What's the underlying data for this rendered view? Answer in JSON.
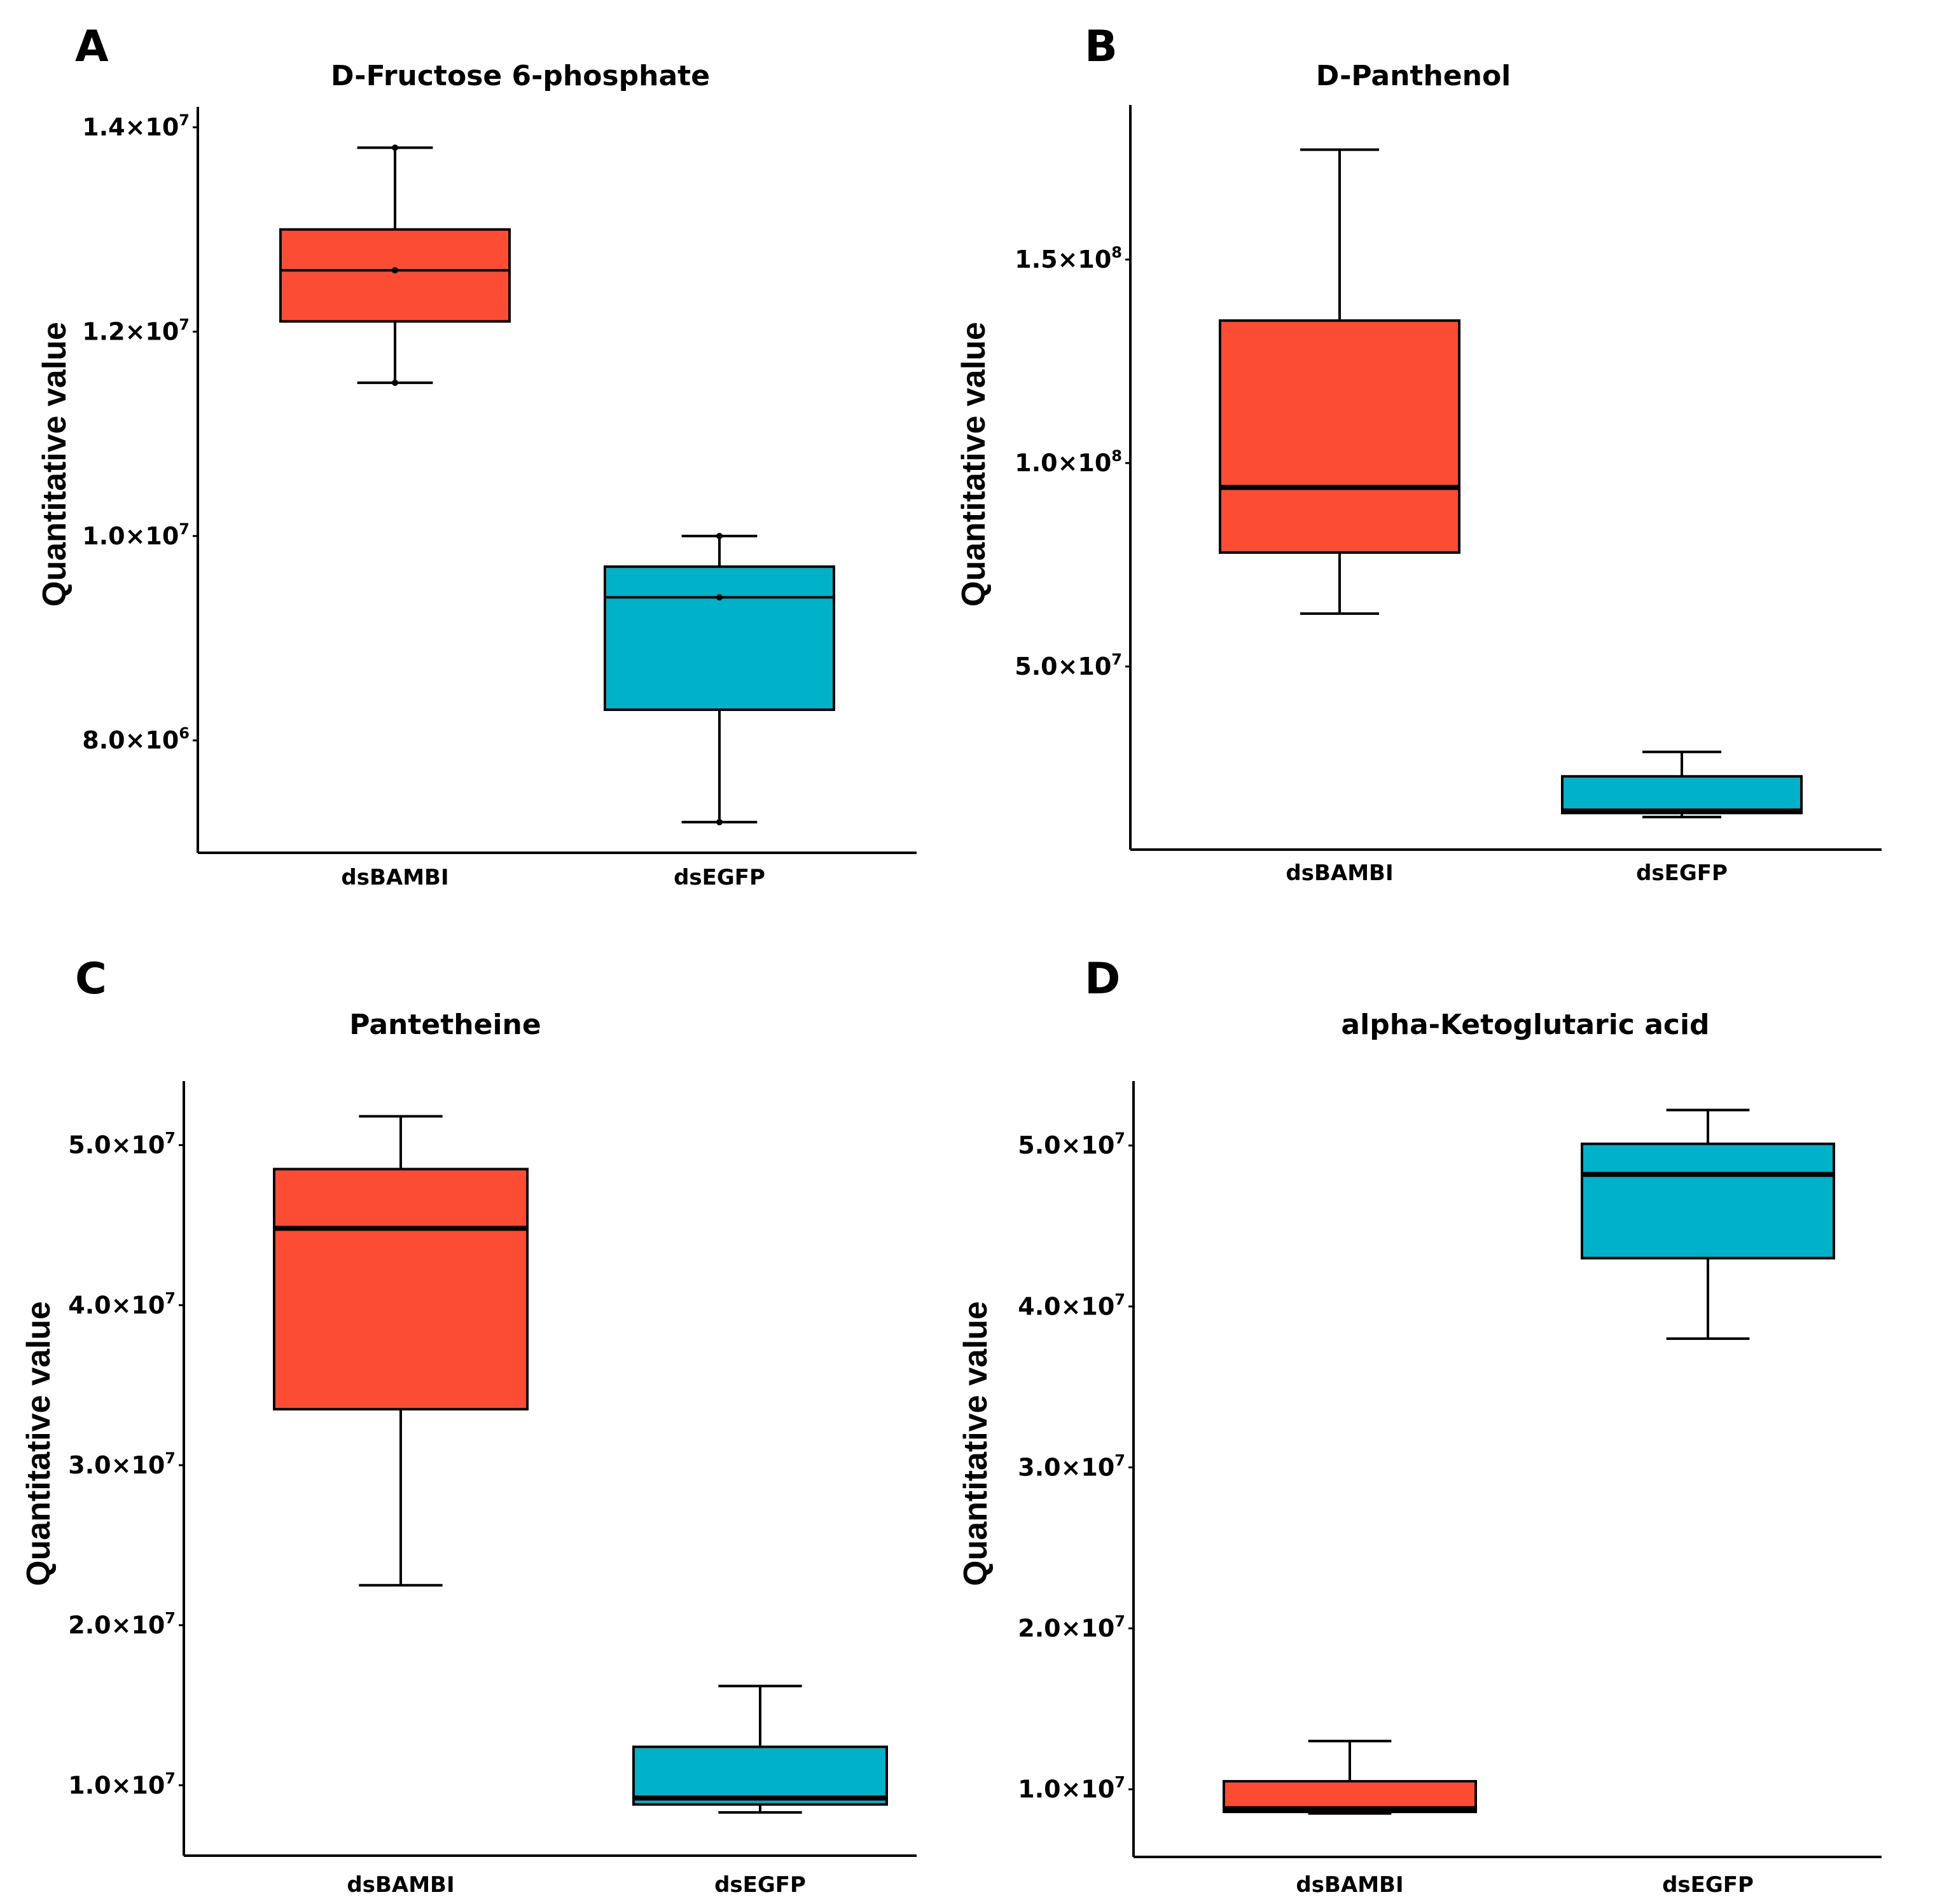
{
  "chart_data": [
    {
      "panel": "A",
      "type": "box",
      "title": "D-Fructose 6-phosphate",
      "ylabel": "Quantitative value",
      "ylim": [
        6900000,
        14200000
      ],
      "yticks": [
        {
          "value": 8000000,
          "mant": "8.0",
          "exp": "6"
        },
        {
          "value": 10000000,
          "mant": "1.0",
          "exp": "7"
        },
        {
          "value": 12000000,
          "mant": "1.2",
          "exp": "7"
        },
        {
          "value": 14000000,
          "mant": "1.4",
          "exp": "7"
        }
      ],
      "categories": [
        "dsBAMBI",
        "dsEGFP"
      ],
      "boxes": [
        {
          "name": "dsBAMBI",
          "color": "#FC4C33",
          "min": 11500000,
          "q1": 12100000,
          "median": 12600000,
          "q3": 13000000,
          "max": 13800000,
          "mean_dots": true
        },
        {
          "name": "dsEGFP",
          "color": "#00B2C9",
          "min": 7200000,
          "q1": 8300000,
          "median": 9400000,
          "q3": 9700000,
          "max": 10000000,
          "mean_dots": true
        }
      ]
    },
    {
      "panel": "B",
      "type": "box",
      "title": "D-Panthenol",
      "ylabel": "Quantitative value",
      "ylim": [
        5000000,
        188000000
      ],
      "yticks": [
        {
          "value": 50000000,
          "mant": "5.0",
          "exp": "7"
        },
        {
          "value": 100000000,
          "mant": "1.0",
          "exp": "8"
        },
        {
          "value": 150000000,
          "mant": "1.5",
          "exp": "8"
        }
      ],
      "categories": [
        "dsBAMBI",
        "dsEGFP"
      ],
      "boxes": [
        {
          "name": "dsBAMBI",
          "color": "#FC4C33",
          "min": 63000000,
          "q1": 78000000,
          "median": 94000000,
          "q3": 135000000,
          "max": 177000000,
          "mean_dots": false
        },
        {
          "name": "dsEGFP",
          "color": "#00B2C9",
          "min": 13000000,
          "q1": 14000000,
          "median": 14500000,
          "q3": 23000000,
          "max": 29000000,
          "mean_dots": false
        }
      ]
    },
    {
      "panel": "C",
      "type": "box",
      "title": "Pantetheine",
      "ylabel": "Quantitative value",
      "ylim": [
        5600000,
        54000000
      ],
      "yticks": [
        {
          "value": 10000000,
          "mant": "1.0",
          "exp": "7"
        },
        {
          "value": 20000000,
          "mant": "2.0",
          "exp": "7"
        },
        {
          "value": 30000000,
          "mant": "3.0",
          "exp": "7"
        },
        {
          "value": 40000000,
          "mant": "4.0",
          "exp": "7"
        },
        {
          "value": 50000000,
          "mant": "5.0",
          "exp": "7"
        }
      ],
      "categories": [
        "dsBAMBI",
        "dsEGFP"
      ],
      "boxes": [
        {
          "name": "dsBAMBI",
          "color": "#FC4C33",
          "min": 22500000,
          "q1": 33500000,
          "median": 44800000,
          "q3": 48500000,
          "max": 51800000,
          "mean_dots": false
        },
        {
          "name": "dsEGFP",
          "color": "#00B2C9",
          "min": 8300000,
          "q1": 8800000,
          "median": 9200000,
          "q3": 12400000,
          "max": 16200000,
          "mean_dots": false
        }
      ]
    },
    {
      "panel": "D",
      "type": "box",
      "title": "alpha-Ketoglutaric acid",
      "ylabel": "Quantitative value",
      "ylim": [
        5800000,
        54000000
      ],
      "yticks": [
        {
          "value": 10000000,
          "mant": "1.0",
          "exp": "7"
        },
        {
          "value": 20000000,
          "mant": "2.0",
          "exp": "7"
        },
        {
          "value": 30000000,
          "mant": "3.0",
          "exp": "7"
        },
        {
          "value": 40000000,
          "mant": "4.0",
          "exp": "7"
        },
        {
          "value": 50000000,
          "mant": "5.0",
          "exp": "7"
        }
      ],
      "categories": [
        "dsBAMBI",
        "dsEGFP"
      ],
      "boxes": [
        {
          "name": "dsBAMBI",
          "color": "#FC4C33",
          "min": 8500000,
          "q1": 8600000,
          "median": 8800000,
          "q3": 10500000,
          "max": 13000000,
          "mean_dots": false
        },
        {
          "name": "dsEGFP",
          "color": "#00B2C9",
          "min": 38000000,
          "q1": 43000000,
          "median": 48200000,
          "q3": 50100000,
          "max": 52200000,
          "mean_dots": false
        }
      ]
    }
  ]
}
